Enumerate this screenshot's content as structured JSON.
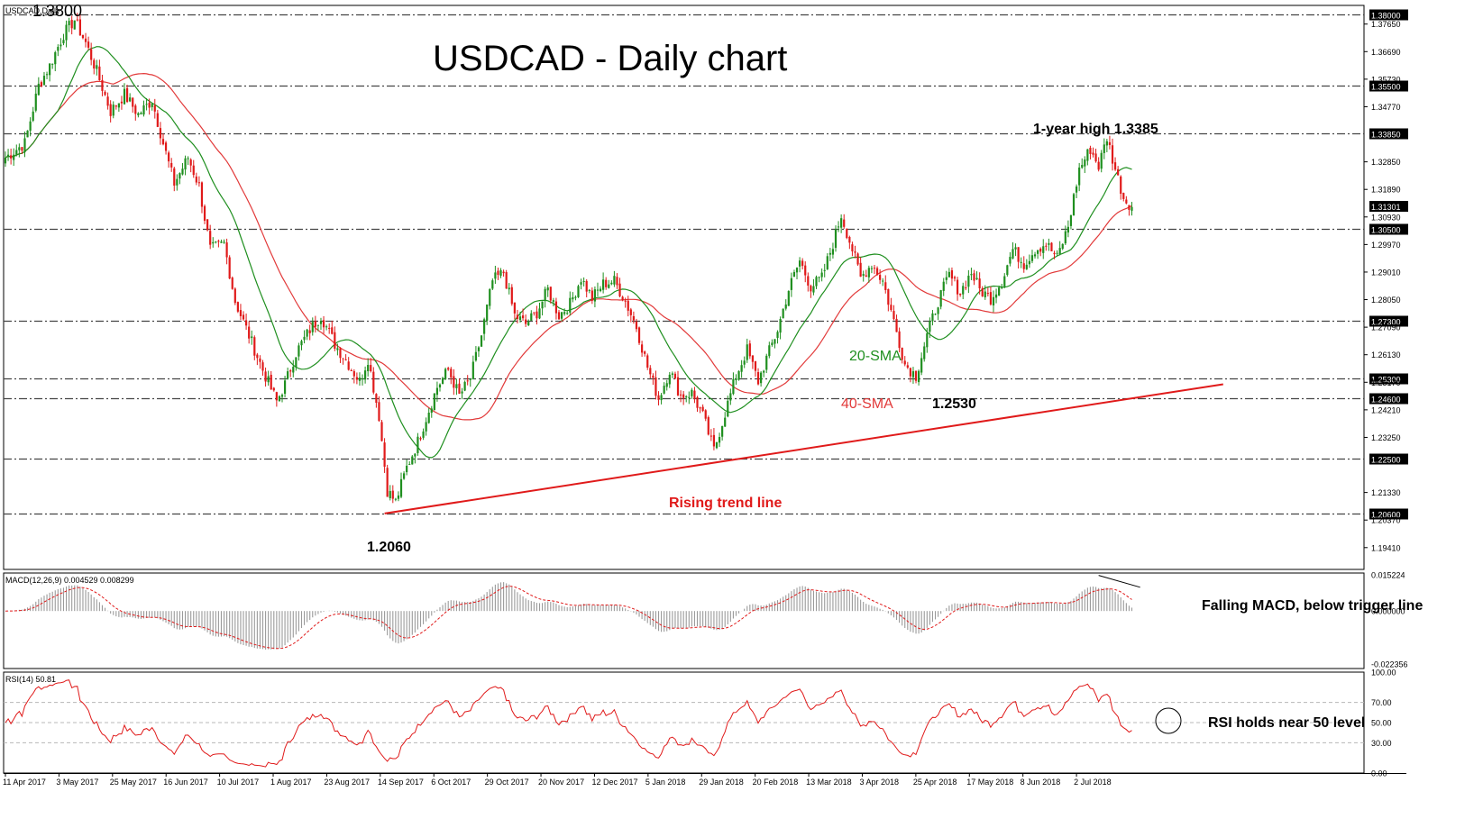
{
  "window": {
    "symbol_label": "USDCAD,Daily"
  },
  "chart_data": [
    {
      "type": "candlestick",
      "title": "USDCAD - Daily chart",
      "ylim": [
        1.1865,
        1.383
      ],
      "price_labels": [
        "1.37650",
        "1.36690",
        "1.35730",
        "1.34770",
        "1.32850",
        "1.31890",
        "1.30930",
        "1.29970",
        "1.29010",
        "1.28050",
        "1.27090",
        "1.26130",
        "1.25170",
        "1.24210",
        "1.23250",
        "1.21330",
        "1.20370",
        "1.19410"
      ],
      "horizontal_levels": [
        {
          "value": 1.38,
          "label": "1.38000"
        },
        {
          "value": 1.355,
          "label": "1.35500"
        },
        {
          "value": 1.3385,
          "label": "1.33850"
        },
        {
          "value": 1.305,
          "label": "1.30500"
        },
        {
          "value": 1.273,
          "label": "1.27300"
        },
        {
          "value": 1.253,
          "label": "1.25300"
        },
        {
          "value": 1.246,
          "label": "1.24600"
        },
        {
          "value": 1.225,
          "label": "1.22500"
        },
        {
          "value": 1.206,
          "label": "1.20600"
        }
      ],
      "current_price": {
        "value": 1.313,
        "label": "1.31301"
      },
      "x_dates": [
        "11 Apr 2017",
        "3 May 2017",
        "25 May 2017",
        "16 Jun 2017",
        "10 Jul 2017",
        "1 Aug 2017",
        "23 Aug 2017",
        "14 Sep 2017",
        "6 Oct 2017",
        "29 Oct 2017",
        "20 Nov 2017",
        "12 Dec 2017",
        "5 Jan 2018",
        "29 Jan 2018",
        "20 Feb 2018",
        "13 Mar 2018",
        "3 Apr 2018",
        "25 Apr 2018",
        "17 May 2018",
        "8 Jun 2018",
        "2 Jul 2018"
      ],
      "close_path": [
        [
          0,
          1.33
        ],
        [
          7,
          1.335
        ],
        [
          12,
          1.355
        ],
        [
          16,
          1.362
        ],
        [
          21,
          1.373
        ],
        [
          25,
          1.378
        ],
        [
          29,
          1.37
        ],
        [
          33,
          1.36
        ],
        [
          38,
          1.346
        ],
        [
          43,
          1.352
        ],
        [
          48,
          1.345
        ],
        [
          53,
          1.35
        ],
        [
          57,
          1.335
        ],
        [
          61,
          1.321
        ],
        [
          66,
          1.33
        ],
        [
          70,
          1.32
        ],
        [
          74,
          1.298
        ],
        [
          79,
          1.3
        ],
        [
          83,
          1.28
        ],
        [
          88,
          1.268
        ],
        [
          93,
          1.256
        ],
        [
          98,
          1.245
        ],
        [
          101,
          1.251
        ],
        [
          105,
          1.262
        ],
        [
          110,
          1.27
        ],
        [
          114,
          1.275
        ],
        [
          119,
          1.265
        ],
        [
          124,
          1.258
        ],
        [
          128,
          1.252
        ],
        [
          131,
          1.26
        ],
        [
          135,
          1.24
        ],
        [
          138,
          1.214
        ],
        [
          141,
          1.21
        ],
        [
          145,
          1.222
        ],
        [
          149,
          1.231
        ],
        [
          153,
          1.242
        ],
        [
          156,
          1.25
        ],
        [
          160,
          1.256
        ],
        [
          164,
          1.247
        ],
        [
          168,
          1.253
        ],
        [
          172,
          1.268
        ],
        [
          176,
          1.287
        ],
        [
          180,
          1.29
        ],
        [
          184,
          1.275
        ],
        [
          188,
          1.272
        ],
        [
          192,
          1.276
        ],
        [
          196,
          1.284
        ],
        [
          200,
          1.275
        ],
        [
          204,
          1.279
        ],
        [
          208,
          1.288
        ],
        [
          212,
          1.281
        ],
        [
          216,
          1.286
        ],
        [
          220,
          1.287
        ],
        [
          224,
          1.28
        ],
        [
          228,
          1.271
        ],
        [
          232,
          1.257
        ],
        [
          236,
          1.246
        ],
        [
          240,
          1.256
        ],
        [
          244,
          1.247
        ],
        [
          248,
          1.248
        ],
        [
          252,
          1.24
        ],
        [
          256,
          1.228
        ],
        [
          260,
          1.241
        ],
        [
          264,
          1.254
        ],
        [
          268,
          1.263
        ],
        [
          272,
          1.252
        ],
        [
          275,
          1.26
        ],
        [
          279,
          1.27
        ],
        [
          283,
          1.284
        ],
        [
          287,
          1.294
        ],
        [
          291,
          1.285
        ],
        [
          295,
          1.288
        ],
        [
          299,
          1.3
        ],
        [
          302,
          1.31
        ],
        [
          306,
          1.298
        ],
        [
          309,
          1.288
        ],
        [
          313,
          1.293
        ],
        [
          317,
          1.287
        ],
        [
          321,
          1.273
        ],
        [
          325,
          1.258
        ],
        [
          329,
          1.254
        ],
        [
          333,
          1.268
        ],
        [
          337,
          1.28
        ],
        [
          341,
          1.289
        ],
        [
          345,
          1.283
        ],
        [
          349,
          1.29
        ],
        [
          352,
          1.284
        ],
        [
          356,
          1.281
        ],
        [
          360,
          1.287
        ],
        [
          364,
          1.298
        ],
        [
          368,
          1.293
        ],
        [
          372,
          1.298
        ],
        [
          376,
          1.3
        ],
        [
          380,
          1.295
        ],
        [
          384,
          1.306
        ],
        [
          388,
          1.326
        ],
        [
          392,
          1.333
        ],
        [
          395,
          1.327
        ],
        [
          398,
          1.337
        ],
        [
          401,
          1.326
        ],
        [
          404,
          1.316
        ],
        [
          407,
          1.313
        ]
      ],
      "series": [
        {
          "name": "20-SMA",
          "color": "#1f8f1f"
        },
        {
          "name": "40-SMA",
          "color": "#e23a3a"
        }
      ],
      "annotations": [
        {
          "text": "1.3800",
          "value": 1.38
        },
        {
          "text": "1-year high 1.3385",
          "value": 1.3385
        },
        {
          "text": "20-SMA"
        },
        {
          "text": "40-SMA"
        },
        {
          "text": "1.2530",
          "value": 1.253
        },
        {
          "text": "1.2060",
          "value": 1.206
        },
        {
          "text": "Rising trend line"
        }
      ],
      "trend_line": {
        "from": [
          137,
          1.206
        ],
        "to": [
          440,
          1.251
        ],
        "color": "#e01a1a"
      }
    },
    {
      "type": "bar",
      "title": "MACD(12,26,9) 0.004529 0.008299",
      "ylim": [
        -0.0242,
        0.016
      ],
      "tick_labels": [
        "0.015224",
        "0.000000",
        "-0.022356"
      ],
      "annotation": "Falling MACD, below trigger line"
    },
    {
      "type": "line",
      "title": "RSI(14) 50.81",
      "ylim": [
        0,
        100
      ],
      "levels": [
        70,
        50,
        30
      ],
      "tick_labels": [
        "100.00",
        "70.00",
        "50.00",
        "30.00",
        "0.00"
      ],
      "annotation": "RSI holds near 50 level"
    }
  ],
  "colors": {
    "bull": "#1f8f1f",
    "bear": "#e01a1a",
    "sma20": "#1f8f1f",
    "sma40": "#e23a3a",
    "grid": "#444444",
    "rsi": "#e01a1a",
    "macd_bar": "#9a9a9a",
    "macd_signal": "#e01a1a"
  }
}
